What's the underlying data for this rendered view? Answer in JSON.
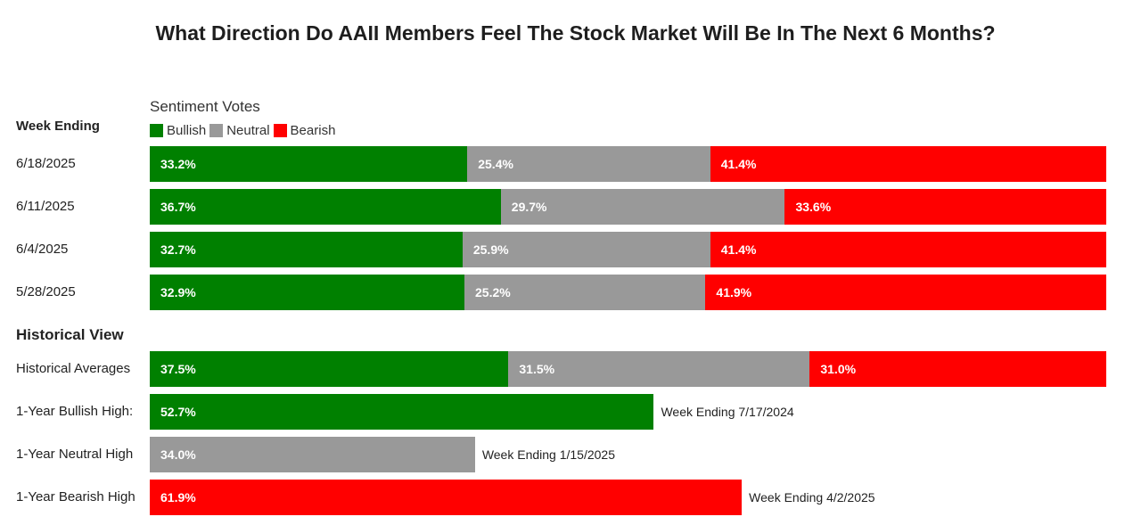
{
  "title": "What Direction Do AAII Members Feel The Stock Market Will Be In The Next 6 Months?",
  "subtitle": "Sentiment Votes",
  "colors": {
    "bullish": "#008000",
    "neutral": "#999999",
    "bearish": "#ff0000"
  },
  "chart_data": {
    "type": "bar",
    "orientation": "horizontal",
    "stacked": true,
    "title": "What Direction Do AAII Members Feel The Stock Market Will Be In The Next 6 Months?",
    "subtitle": "Sentiment Votes",
    "legend": [
      "Bullish",
      "Neutral",
      "Bearish"
    ],
    "legend_placement": "top-left",
    "value_unit": "%",
    "week_section_label": "Week Ending",
    "historical_section_label": "Historical View",
    "weekly": [
      {
        "label": "6/18/2025",
        "bullish": 33.2,
        "neutral": 25.4,
        "bearish": 41.4
      },
      {
        "label": "6/11/2025",
        "bullish": 36.7,
        "neutral": 29.7,
        "bearish": 33.6
      },
      {
        "label": "6/4/2025",
        "bullish": 32.7,
        "neutral": 25.9,
        "bearish": 41.4
      },
      {
        "label": "5/28/2025",
        "bullish": 32.9,
        "neutral": 25.2,
        "bearish": 41.9
      }
    ],
    "historical": [
      {
        "label": "Historical Averages",
        "bullish": 37.5,
        "neutral": 31.5,
        "bearish": 31.0
      },
      {
        "label": "1-Year Bullish High:",
        "series": "bullish",
        "value": 52.7,
        "note": "Week Ending 7/17/2024"
      },
      {
        "label": "1-Year Neutral High",
        "series": "neutral",
        "value": 34.0,
        "note": "Week Ending 1/15/2025"
      },
      {
        "label": "1-Year Bearish High",
        "series": "bearish",
        "value": 61.9,
        "note": "Week Ending 4/2/2025"
      }
    ]
  }
}
